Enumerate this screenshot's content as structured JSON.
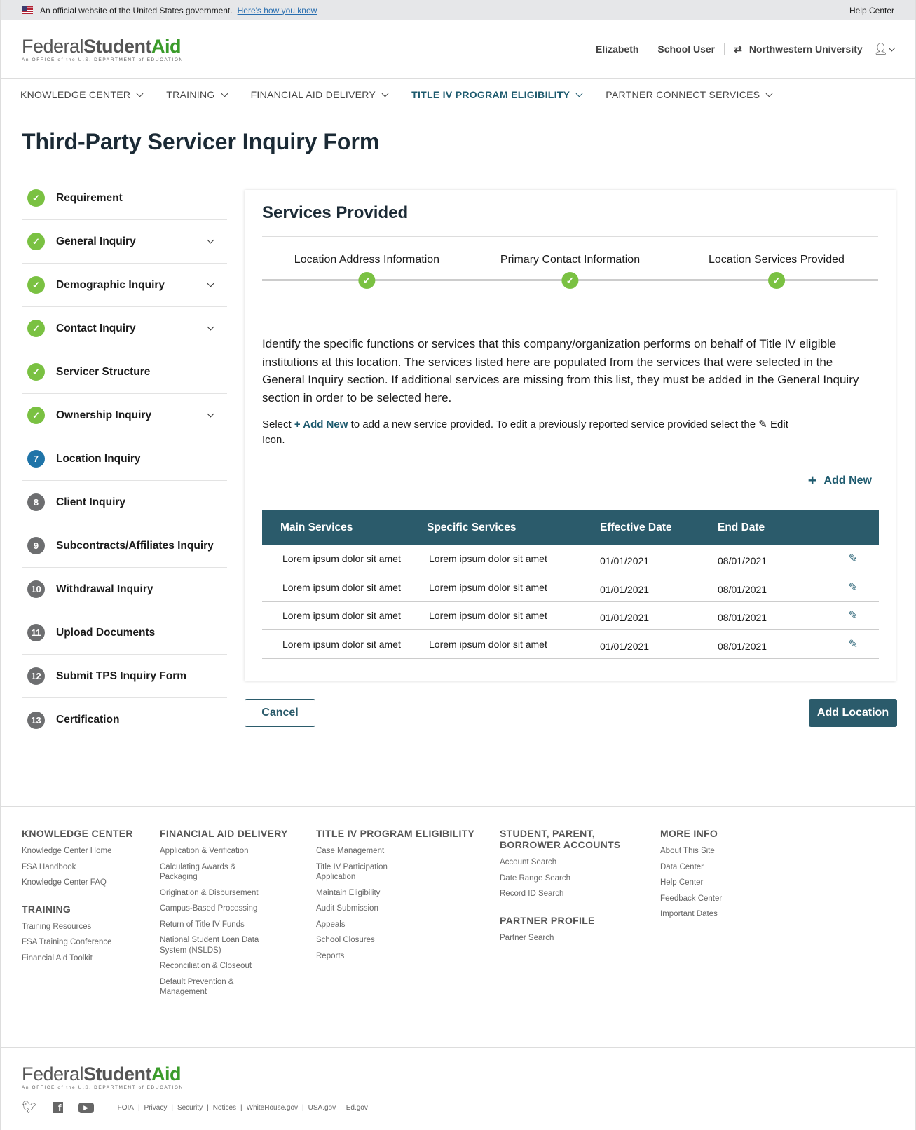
{
  "banner": {
    "text": "An official website of the United States government.",
    "link": "Here's how you know",
    "help": "Help Center"
  },
  "logo": {
    "federal": "Federal",
    "student": "Student",
    "aid": "Aid",
    "tagline": "An OFFICE of the U.S. DEPARTMENT of EDUCATION"
  },
  "user": {
    "name": "Elizabeth",
    "role": "School User",
    "org": "Northwestern University"
  },
  "nav": [
    {
      "label": "KNOWLEDGE CENTER"
    },
    {
      "label": "TRAINING"
    },
    {
      "label": "FINANCIAL AID DELIVERY"
    },
    {
      "label": "TITLE IV PROGRAM ELIGIBILITY",
      "active": true
    },
    {
      "label": "PARTNER CONNECT SERVICES"
    }
  ],
  "page_title": "Third-Party Servicer Inquiry Form",
  "sidebar": [
    {
      "badge": "✓",
      "label": "Requirement",
      "status": "done"
    },
    {
      "badge": "✓",
      "label": "General Inquiry",
      "status": "done",
      "expandable": true
    },
    {
      "badge": "✓",
      "label": "Demographic Inquiry",
      "status": "done",
      "expandable": true
    },
    {
      "badge": "✓",
      "label": "Contact Inquiry",
      "status": "done",
      "expandable": true
    },
    {
      "badge": "✓",
      "label": "Servicer Structure",
      "status": "done"
    },
    {
      "badge": "✓",
      "label": "Ownership Inquiry",
      "status": "done",
      "expandable": true
    },
    {
      "badge": "7",
      "label": "Location Inquiry",
      "status": "current"
    },
    {
      "badge": "8",
      "label": "Client Inquiry",
      "status": "todo"
    },
    {
      "badge": "9",
      "label": "Subcontracts/Affiliates Inquiry",
      "status": "todo"
    },
    {
      "badge": "10",
      "label": "Withdrawal Inquiry",
      "status": "todo"
    },
    {
      "badge": "11",
      "label": "Upload Documents",
      "status": "todo"
    },
    {
      "badge": "12",
      "label": "Submit TPS Inquiry Form",
      "status": "todo"
    },
    {
      "badge": "13",
      "label": "Certification",
      "status": "todo"
    }
  ],
  "card": {
    "title": "Services Provided",
    "steps": [
      "Location Address Information",
      "Primary Contact Information",
      "Location Services Provided"
    ],
    "description": "Identify the specific functions or services that this company/organization performs on behalf of Title IV eligible institutions at this location.  The services listed here are populated from the services that were selected in the General Inquiry section.  If additional services are missing from this list, they must be added in the General Inquiry section in order to be selected here.",
    "instr_a": "Select ",
    "instr_add": "+ Add New",
    "instr_b": " to add a new service provided. To edit a previously reported service provided select the ",
    "instr_c": " Edit Icon.",
    "add_new": "Add New",
    "table": {
      "headers": [
        "Main Services",
        "Specific Services",
        "Effective Date",
        "End Date"
      ],
      "rows": [
        [
          "Lorem ipsum dolor sit amet",
          "Lorem ipsum dolor sit amet",
          "01/01/2021",
          "08/01/2021"
        ],
        [
          "Lorem ipsum dolor sit amet",
          "Lorem ipsum dolor sit amet",
          "01/01/2021",
          "08/01/2021"
        ],
        [
          "Lorem ipsum dolor sit amet",
          "Lorem ipsum dolor sit amet",
          "01/01/2021",
          "08/01/2021"
        ],
        [
          "Lorem ipsum dolor sit amet",
          "Lorem ipsum dolor sit amet",
          "01/01/2021",
          "08/01/2021"
        ]
      ]
    }
  },
  "buttons": {
    "cancel": "Cancel",
    "add_location": "Add Location"
  },
  "footer": {
    "cols": [
      {
        "sections": [
          {
            "title": "KNOWLEDGE CENTER",
            "links": [
              "Knowledge Center Home",
              "FSA Handbook",
              "Knowledge Center FAQ"
            ]
          },
          {
            "title": "TRAINING",
            "links": [
              "Training Resources",
              "FSA Training Conference",
              "Financial Aid Toolkit"
            ]
          }
        ]
      },
      {
        "sections": [
          {
            "title": "FINANCIAL AID DELIVERY",
            "links": [
              "Application & Verification",
              "Calculating Awards & Packaging",
              "Origination & Disbursement",
              "Campus-Based Processing",
              "Return of Title IV Funds",
              "National Student Loan Data System (NSLDS)",
              "Reconciliation & Closeout",
              "Default Prevention & Management"
            ]
          }
        ]
      },
      {
        "sections": [
          {
            "title": "TITLE IV PROGRAM ELIGIBILITY",
            "links": [
              "Case Management",
              "Title IV Participation Application",
              "Maintain Eligibility",
              "Audit Submission",
              "Appeals",
              "School Closures",
              "Reports"
            ]
          }
        ]
      },
      {
        "sections": [
          {
            "title": "STUDENT, PARENT, BORROWER ACCOUNTS",
            "links": [
              "Account Search",
              "Date Range Search",
              "Record ID Search"
            ]
          },
          {
            "title": "PARTNER PROFILE",
            "links": [
              "Partner Search"
            ]
          }
        ]
      },
      {
        "sections": [
          {
            "title": "MORE INFO",
            "links": [
              "About This Site",
              "Data Center",
              "Help Center",
              "Feedback Center",
              "Important Dates"
            ]
          }
        ]
      }
    ],
    "legal": [
      "FOIA",
      "Privacy",
      "Security",
      "Notices",
      "WhiteHouse.gov",
      "USA.gov",
      "Ed.gov"
    ]
  },
  "colors": {
    "primary": "#2b5b6b",
    "done": "#7ac142",
    "current": "#1f74a8",
    "todo": "#6d6e70",
    "brand_green": "#3a9b2a"
  }
}
